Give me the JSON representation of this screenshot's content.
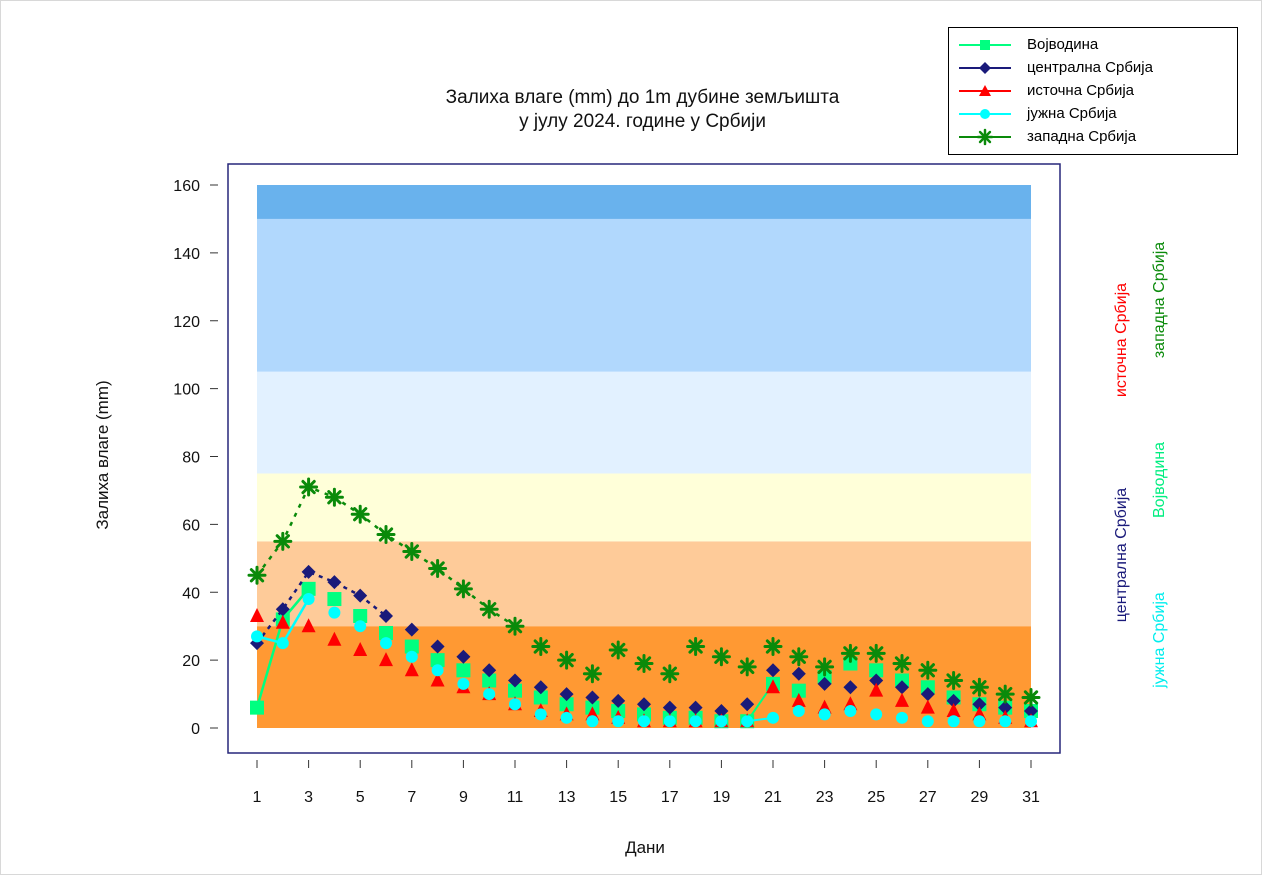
{
  "chart_data": {
    "type": "line",
    "title_lines": [
      "Залиха влаге (mm) до 1m дубине земљишта",
      "у јулу 2024. године у Србији"
    ],
    "xlabel": "Дани",
    "ylabel": "Залиха влаге (mm)",
    "xlim": [
      1,
      31
    ],
    "ylim": [
      0,
      160
    ],
    "yticks": [
      0,
      20,
      40,
      60,
      80,
      100,
      120,
      140,
      160
    ],
    "xticks": [
      1,
      3,
      5,
      7,
      9,
      11,
      13,
      15,
      17,
      19,
      21,
      23,
      25,
      27,
      29,
      31
    ],
    "legend_position": "top-right",
    "bands": [
      {
        "from": 0,
        "to": 30,
        "color": "#ff9933"
      },
      {
        "from": 30,
        "to": 55,
        "color": "#fecb99"
      },
      {
        "from": 55,
        "to": 75,
        "color": "#ffffd9"
      },
      {
        "from": 75,
        "to": 105,
        "color": "#e2f1ff"
      },
      {
        "from": 105,
        "to": 150,
        "color": "#b1d8fd"
      },
      {
        "from": 150,
        "to": 160,
        "color": "#69b2ed"
      }
    ],
    "x": [
      1,
      2,
      3,
      4,
      5,
      6,
      7,
      8,
      9,
      10,
      11,
      12,
      13,
      14,
      15,
      16,
      17,
      18,
      19,
      20,
      21,
      22,
      23,
      24,
      25,
      26,
      27,
      28,
      29,
      30,
      31
    ],
    "series": [
      {
        "name": "Војводина",
        "color": "#00ff80",
        "marker": "square",
        "values": [
          6,
          32,
          41,
          38,
          33,
          28,
          24,
          20,
          17,
          14,
          11,
          9,
          7,
          6,
          5,
          4,
          3,
          3,
          2,
          2,
          13,
          11,
          15,
          19,
          17,
          14,
          12,
          9,
          7,
          6,
          5
        ]
      },
      {
        "name": "централна Србија",
        "color": "#1a1a7a",
        "marker": "diamond",
        "values": [
          25,
          35,
          46,
          43,
          39,
          33,
          29,
          24,
          21,
          17,
          14,
          12,
          10,
          9,
          8,
          7,
          6,
          6,
          5,
          7,
          17,
          16,
          13,
          12,
          14,
          12,
          10,
          8,
          7,
          6,
          5
        ]
      },
      {
        "name": "источна Србија",
        "color": "#ff0000",
        "marker": "triangle",
        "values": [
          33,
          31,
          30,
          26,
          23,
          20,
          17,
          14,
          12,
          10,
          7,
          5,
          4,
          4,
          3,
          2,
          2,
          2,
          2,
          2,
          12,
          8,
          6,
          7,
          11,
          8,
          6,
          5,
          4,
          3,
          2
        ]
      },
      {
        "name": "јужна Србија",
        "color": "#00ffff",
        "marker": "circle",
        "values": [
          27,
          25,
          38,
          34,
          30,
          25,
          21,
          17,
          13,
          10,
          7,
          4,
          3,
          2,
          2,
          2,
          2,
          2,
          2,
          2,
          3,
          5,
          4,
          5,
          4,
          3,
          2,
          2,
          2,
          2,
          2
        ]
      },
      {
        "name": "западна Србија",
        "color": "#0a8a0a",
        "marker": "asterisk",
        "values": [
          45,
          55,
          71,
          68,
          63,
          57,
          52,
          47,
          41,
          35,
          30,
          24,
          20,
          16,
          23,
          19,
          16,
          24,
          21,
          18,
          24,
          21,
          18,
          22,
          22,
          19,
          17,
          14,
          12,
          10,
          9
        ]
      }
    ],
    "side_labels": [
      "источна Србија",
      "западна Србија",
      "централна Србија",
      "Војводина",
      "јужна Србија"
    ]
  }
}
